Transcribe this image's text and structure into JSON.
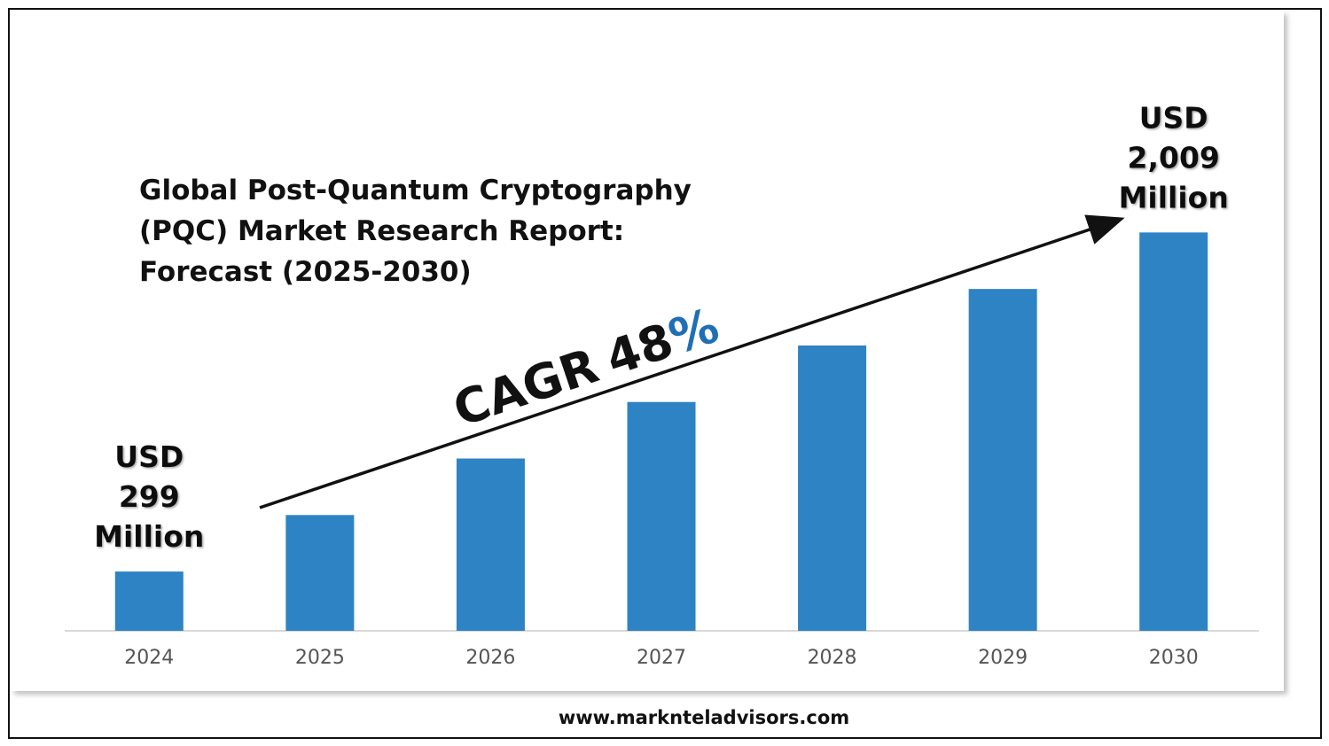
{
  "chart_data": {
    "type": "bar",
    "title": "Global Post-Quantum Cryptography (PQC) Market Research Report: Forecast (2025-2030)",
    "categories": [
      "2024",
      "2025",
      "2026",
      "2027",
      "2028",
      "2029",
      "2030"
    ],
    "values": [
      299,
      584,
      869,
      1154,
      1439,
      1724,
      2009
    ],
    "value_labels": [
      "USD 299 Million",
      null,
      null,
      null,
      null,
      null,
      "USD 2,009 Million"
    ],
    "color": "#2e83c4",
    "ylim": [
      0,
      2100
    ],
    "annotation": {
      "label": "CAGR",
      "value": 48,
      "unit": "%",
      "unit_color": "#1f6fb5"
    },
    "source": "www.marknteladvisors.com"
  }
}
